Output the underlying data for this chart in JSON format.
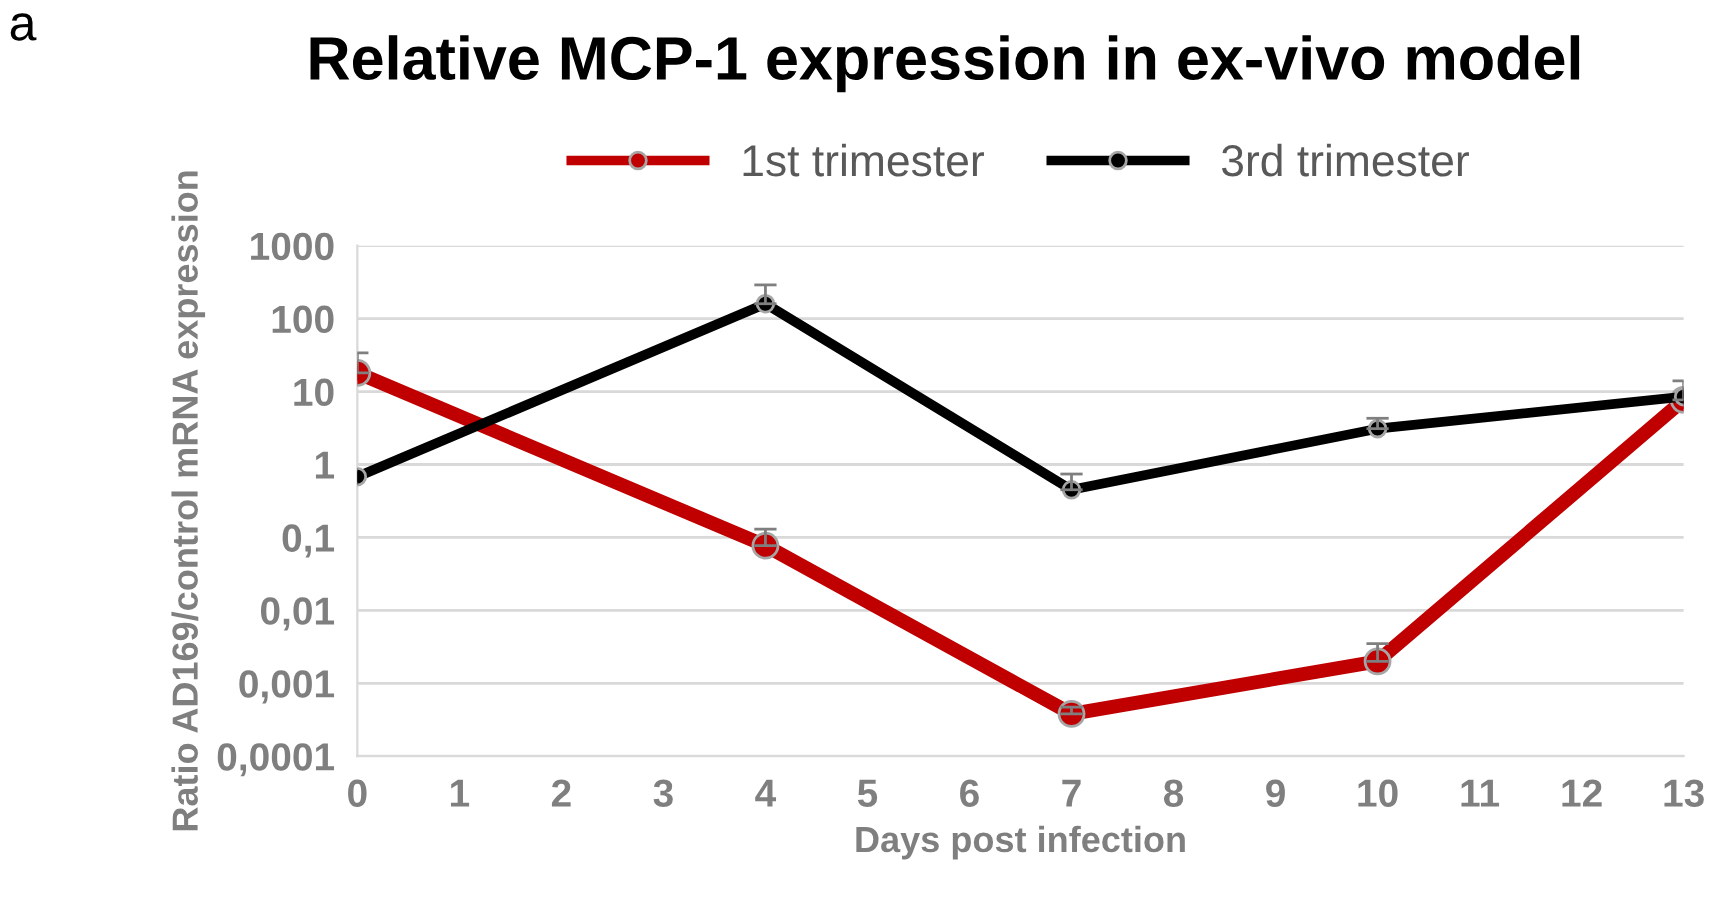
{
  "chart_data": {
    "type": "line",
    "title": "Relative MCP-1 expression in ex-vivo model",
    "annotations": [
      "a"
    ],
    "xlabel": "Days post infection",
    "ylabel": "Ratio AD169/control mRNA expression",
    "x": [
      0,
      4,
      7,
      10,
      13
    ],
    "series": [
      {
        "name": "1st trimester",
        "color": "#c00000",
        "values": [
          18,
          0.077,
          0.00038,
          0.002,
          7.7
        ],
        "errors": [
          [
            18,
            34
          ],
          [
            0.077,
            0.13
          ],
          [
            0.00038,
            0.00047
          ],
          [
            0.002,
            0.0035
          ],
          [
            7.7,
            14
          ]
        ]
      },
      {
        "name": "3rd trimester",
        "color": "#000000",
        "values": [
          0.68,
          160,
          0.45,
          3.1,
          8.5
        ],
        "errors": [
          null,
          [
            160,
            290
          ],
          [
            0.45,
            0.74
          ],
          [
            3.1,
            4.3
          ],
          null
        ]
      }
    ],
    "log": "y",
    "xlim": [
      0,
      13
    ],
    "xticks": [
      0,
      1,
      2,
      3,
      4,
      5,
      6,
      7,
      8,
      9,
      10,
      11,
      12,
      13
    ],
    "ylim": [
      0.0001,
      1000
    ],
    "yticks": [
      {
        "value": 0.0001,
        "label": "0,0001"
      },
      {
        "value": 0.001,
        "label": "0,001"
      },
      {
        "value": 0.01,
        "label": "0,01"
      },
      {
        "value": 0.1,
        "label": "0,1"
      },
      1,
      10,
      100,
      1000
    ],
    "grid": "y",
    "legend": "top",
    "marker": "circle",
    "line_style": "solid"
  }
}
